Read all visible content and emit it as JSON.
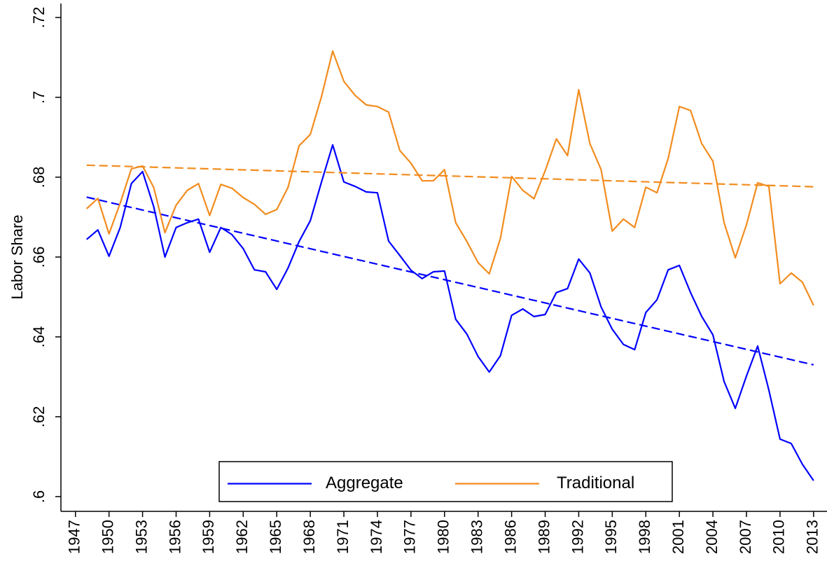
{
  "chart_data": {
    "type": "line",
    "y_label": "Labor Share",
    "x": [
      1948,
      1949,
      1950,
      1951,
      1952,
      1953,
      1954,
      1955,
      1956,
      1957,
      1958,
      1959,
      1960,
      1961,
      1962,
      1963,
      1964,
      1965,
      1966,
      1967,
      1968,
      1969,
      1970,
      1971,
      1972,
      1973,
      1974,
      1975,
      1976,
      1977,
      1978,
      1979,
      1980,
      1981,
      1982,
      1983,
      1984,
      1985,
      1986,
      1987,
      1988,
      1989,
      1990,
      1991,
      1992,
      1993,
      1994,
      1995,
      1996,
      1997,
      1998,
      1999,
      2000,
      2001,
      2002,
      2003,
      2004,
      2005,
      2006,
      2007,
      2008,
      2009,
      2010,
      2011,
      2012,
      2013
    ],
    "series": [
      {
        "name": "Aggregate",
        "color": "#0000ff",
        "values": [
          0.6644,
          0.6668,
          0.6602,
          0.6674,
          0.6784,
          0.6814,
          0.6726,
          0.66,
          0.6674,
          0.6686,
          0.6695,
          0.6612,
          0.6674,
          0.6656,
          0.6621,
          0.6568,
          0.6563,
          0.6519,
          0.6572,
          0.6639,
          0.6691,
          0.6788,
          0.6881,
          0.6788,
          0.6777,
          0.6763,
          0.6761,
          0.664,
          0.6604,
          0.6567,
          0.6546,
          0.6563,
          0.6565,
          0.6444,
          0.6407,
          0.6351,
          0.6312,
          0.6353,
          0.6454,
          0.647,
          0.6451,
          0.6456,
          0.6511,
          0.6521,
          0.6595,
          0.656,
          0.6475,
          0.6419,
          0.6381,
          0.6368,
          0.6461,
          0.6493,
          0.6568,
          0.6579,
          0.6511,
          0.6451,
          0.6405,
          0.6288,
          0.6221,
          0.6302,
          0.6377,
          0.6267,
          0.6144,
          0.6133,
          0.6081,
          0.604
        ],
        "trend": [
          0.675,
          0.633
        ]
      },
      {
        "name": "Traditional",
        "color": "#f28c1e",
        "values": [
          0.6721,
          0.6747,
          0.6658,
          0.6735,
          0.6821,
          0.6828,
          0.6774,
          0.6661,
          0.673,
          0.6767,
          0.6784,
          0.6704,
          0.6782,
          0.6772,
          0.6749,
          0.6732,
          0.6707,
          0.6719,
          0.6774,
          0.6879,
          0.6907,
          0.7002,
          0.7116,
          0.704,
          0.7005,
          0.6981,
          0.6977,
          0.6963,
          0.6867,
          0.6835,
          0.6791,
          0.6791,
          0.6819,
          0.6686,
          0.6639,
          0.6586,
          0.6558,
          0.6647,
          0.6802,
          0.6767,
          0.6746,
          0.6816,
          0.6896,
          0.6854,
          0.7019,
          0.6884,
          0.6819,
          0.6665,
          0.6695,
          0.6674,
          0.6775,
          0.6761,
          0.6847,
          0.6977,
          0.6967,
          0.6884,
          0.684,
          0.6686,
          0.6598,
          0.6681,
          0.6786,
          0.6777,
          0.6533,
          0.656,
          0.6537,
          0.6479
        ],
        "trend": [
          0.683,
          0.6776
        ]
      }
    ],
    "xlim": [
      1945.7,
      2014.2
    ],
    "xticks": [
      1947,
      1950,
      1953,
      1956,
      1959,
      1962,
      1965,
      1968,
      1971,
      1974,
      1977,
      1980,
      1983,
      1986,
      1989,
      1992,
      1995,
      1998,
      2001,
      2004,
      2007,
      2010,
      2013
    ],
    "ylim": [
      0.5963,
      0.7235
    ],
    "yticks": [
      {
        "value": 0.6,
        "label": ".6"
      },
      {
        "value": 0.62,
        "label": ".62"
      },
      {
        "value": 0.64,
        "label": ".64"
      },
      {
        "value": 0.66,
        "label": ".66"
      },
      {
        "value": 0.68,
        "label": ".68"
      },
      {
        "value": 0.7,
        "label": ".7"
      },
      {
        "value": 0.72,
        "label": ".72"
      }
    ],
    "legend": "bottom-center",
    "grid": false
  }
}
